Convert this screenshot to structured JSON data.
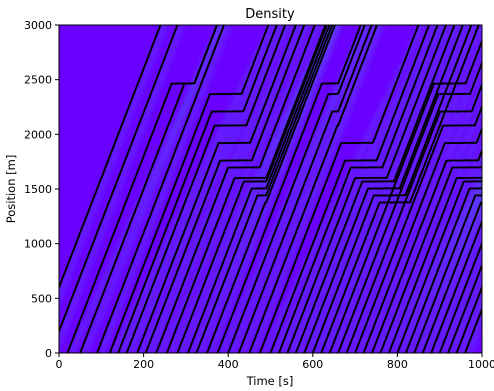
{
  "chart_data": {
    "type": "heatmap",
    "title": "Density",
    "xlabel": "Time [s]",
    "ylabel": "Position [m]",
    "xlim": [
      0,
      1000
    ],
    "ylim": [
      0,
      3000
    ],
    "x_ticks": [
      0,
      200,
      400,
      600,
      800,
      1000
    ],
    "y_ticks": [
      0,
      500,
      1000,
      1500,
      2000,
      2500,
      3000
    ],
    "colormap": "rainbow",
    "overlay": "vehicle trajectories (black dotted lines)",
    "grid": false,
    "legend": "none",
    "vehicle_entry_times": [
      -60,
      -20,
      20,
      50,
      90,
      120,
      140,
      160,
      185,
      205,
      230,
      255,
      280,
      305,
      325,
      350,
      375,
      400,
      425,
      450,
      475,
      500,
      520,
      540,
      560,
      580,
      600,
      620,
      640,
      660,
      680,
      700,
      720,
      740,
      760,
      780,
      800,
      820,
      840,
      860,
      880,
      900,
      920,
      940,
      960
    ],
    "stop_positions": [
      2460,
      2340,
      2200,
      2060,
      1900,
      1760,
      1680,
      1600,
      1540,
      1480,
      1420,
      1360
    ],
    "colors": {
      "background_low": "#6a00ff",
      "mid": "#3fa0f0",
      "high": "#ff2a00",
      "trajectory": "#000000"
    }
  }
}
